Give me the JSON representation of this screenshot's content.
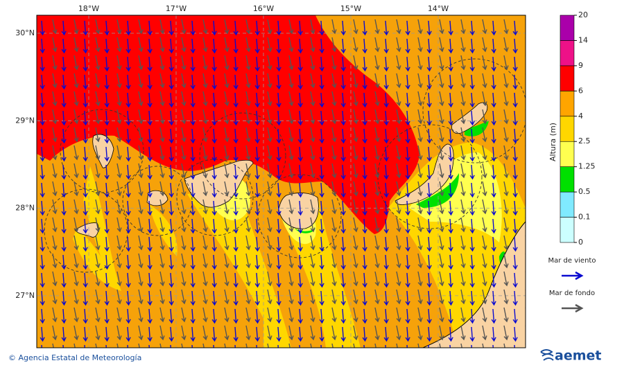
{
  "map": {
    "longitude_labels": [
      "18°W",
      "17°W",
      "16°W",
      "15°W",
      "14°W"
    ],
    "latitude_labels": [
      "30°N",
      "29°N",
      "28°N",
      "27°N"
    ],
    "colorbar": {
      "title": "Altura (m)",
      "ticks": [
        0,
        0.1,
        0.5,
        1.25,
        2.5,
        4,
        6,
        9,
        14,
        20
      ],
      "colors": [
        "#ccffff",
        "#80eaff",
        "#00e000",
        "#ffff50",
        "#ffd700",
        "#ffa500",
        "#ff0000",
        "#ee1188",
        "#aa00aa"
      ]
    },
    "legend": [
      {
        "label": "Mar de viento",
        "color": "#0a0ad0"
      },
      {
        "label": "Mar de fondo",
        "color": "#555555"
      }
    ],
    "footer": {
      "credit": "© Agencia Estatal de Meteorología",
      "logo": "aemet"
    }
  }
}
